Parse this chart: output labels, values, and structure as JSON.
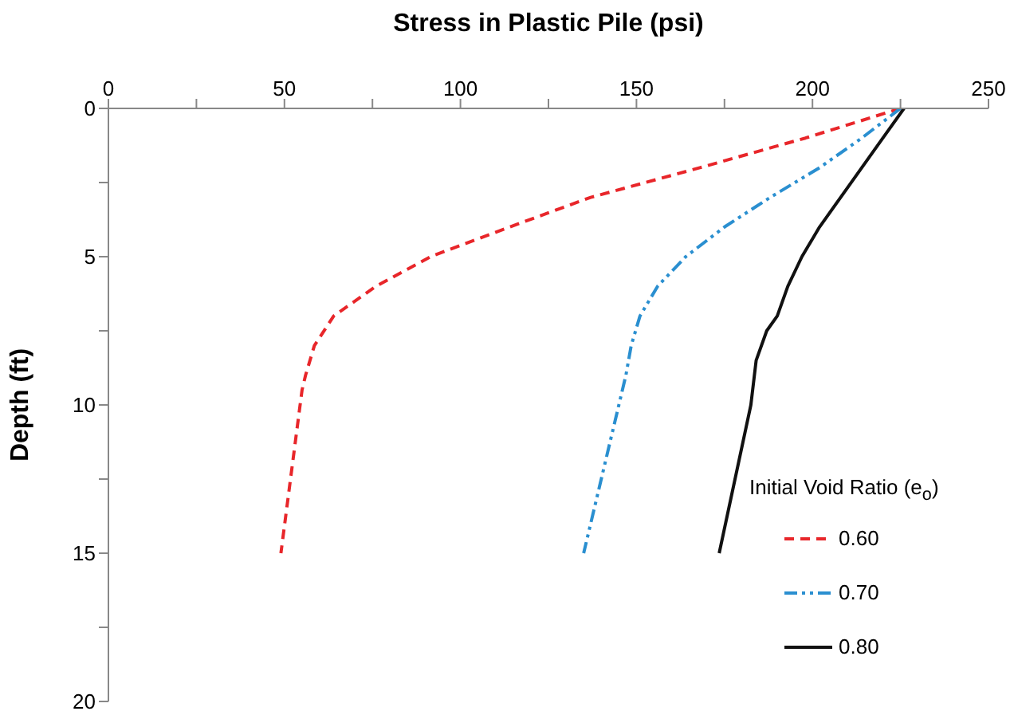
{
  "chart_data": {
    "type": "line",
    "xlabel": "Stress in Plastic Pile (psi)",
    "ylabel": "Depth (ft)",
    "legend_title": "Initial Void Ratio (e$_{o}$)",
    "xlim": [
      0,
      250
    ],
    "xticks": [
      0,
      {
        "value": 25,
        "label": null
      },
      50,
      {
        "value": 75,
        "label": null
      },
      100,
      {
        "value": 125,
        "label": null
      },
      150,
      {
        "value": 175,
        "label": null
      },
      200,
      {
        "value": 225,
        "label": null
      },
      250
    ],
    "ylim": [
      20,
      0
    ],
    "yticks": [
      0,
      {
        "value": 2.5,
        "label": null
      },
      5,
      {
        "value": 7.5,
        "label": null
      },
      10,
      {
        "value": 12.5,
        "label": null
      },
      15,
      {
        "value": 17.5,
        "label": null
      },
      20
    ],
    "grid": false,
    "legend": "bottom right",
    "marker": "none",
    "series": [
      {
        "name": "0.60",
        "color": "#e8262a",
        "line_style": "dashed",
        "x": [
          225,
          198,
          168,
          137,
          114,
          91.5,
          76,
          64,
          58.5,
          56,
          55,
          49
        ],
        "values": [
          0,
          1,
          2,
          3,
          4,
          5,
          6,
          7,
          8,
          9,
          9.5,
          15
        ]
      },
      {
        "name": "0.70",
        "color": "#2a8fd0",
        "line_style": "dashdot",
        "x": [
          225,
          214,
          202,
          188,
          175,
          164,
          156,
          151,
          148.5,
          147,
          135
        ],
        "values": [
          0,
          1,
          2,
          3,
          4,
          5,
          6,
          7,
          8,
          9,
          15
        ]
      },
      {
        "name": "0.80",
        "color": "#111111",
        "line_style": "solid",
        "x": [
          226,
          220,
          214,
          208,
          202,
          197,
          193,
          190,
          187,
          184,
          182.5,
          173.5
        ],
        "values": [
          0,
          1,
          2,
          3,
          4,
          5,
          6,
          7,
          7.5,
          8.5,
          10,
          15
        ]
      }
    ]
  }
}
